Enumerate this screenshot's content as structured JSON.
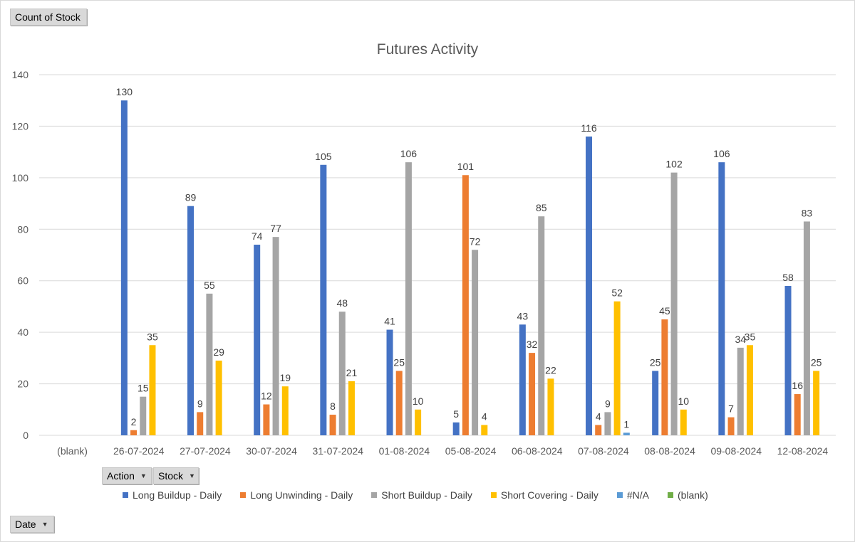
{
  "buttons": {
    "count_label": "Count of Stock",
    "action_label": "Action",
    "stock_label": "Stock",
    "date_label": "Date",
    "dropdown_glyph": "▼"
  },
  "chart_data": {
    "type": "bar",
    "title": "Futures Activity",
    "xlabel": "",
    "ylabel": "",
    "ylim": [
      0,
      140
    ],
    "yticks": [
      0,
      20,
      40,
      60,
      80,
      100,
      120,
      140
    ],
    "grid": true,
    "legend_position": "bottom",
    "categories": [
      "(blank)",
      "26-07-2024",
      "27-07-2024",
      "30-07-2024",
      "31-07-2024",
      "01-08-2024",
      "05-08-2024",
      "06-08-2024",
      "07-08-2024",
      "08-08-2024",
      "09-08-2024",
      "12-08-2024"
    ],
    "series": [
      {
        "name": "Long Buildup - Daily",
        "color": "#4472c4",
        "values": [
          null,
          130,
          89,
          74,
          105,
          41,
          5,
          43,
          116,
          25,
          106,
          58
        ]
      },
      {
        "name": "Long Unwinding - Daily",
        "color": "#ed7d31",
        "values": [
          null,
          2,
          9,
          12,
          8,
          25,
          101,
          32,
          4,
          45,
          7,
          16
        ]
      },
      {
        "name": "Short Buildup - Daily",
        "color": "#a5a5a5",
        "values": [
          null,
          15,
          55,
          77,
          48,
          106,
          72,
          85,
          9,
          102,
          34,
          83
        ]
      },
      {
        "name": "Short Covering - Daily",
        "color": "#ffc000",
        "values": [
          null,
          35,
          29,
          19,
          21,
          10,
          4,
          22,
          52,
          10,
          35,
          25
        ]
      },
      {
        "name": "#N/A",
        "color": "#5b9bd5",
        "values": [
          null,
          null,
          null,
          null,
          null,
          null,
          null,
          null,
          1,
          null,
          null,
          null
        ]
      },
      {
        "name": "(blank)",
        "color": "#70ad47",
        "values": [
          null,
          null,
          null,
          null,
          null,
          null,
          null,
          null,
          null,
          null,
          null,
          null
        ]
      }
    ]
  }
}
